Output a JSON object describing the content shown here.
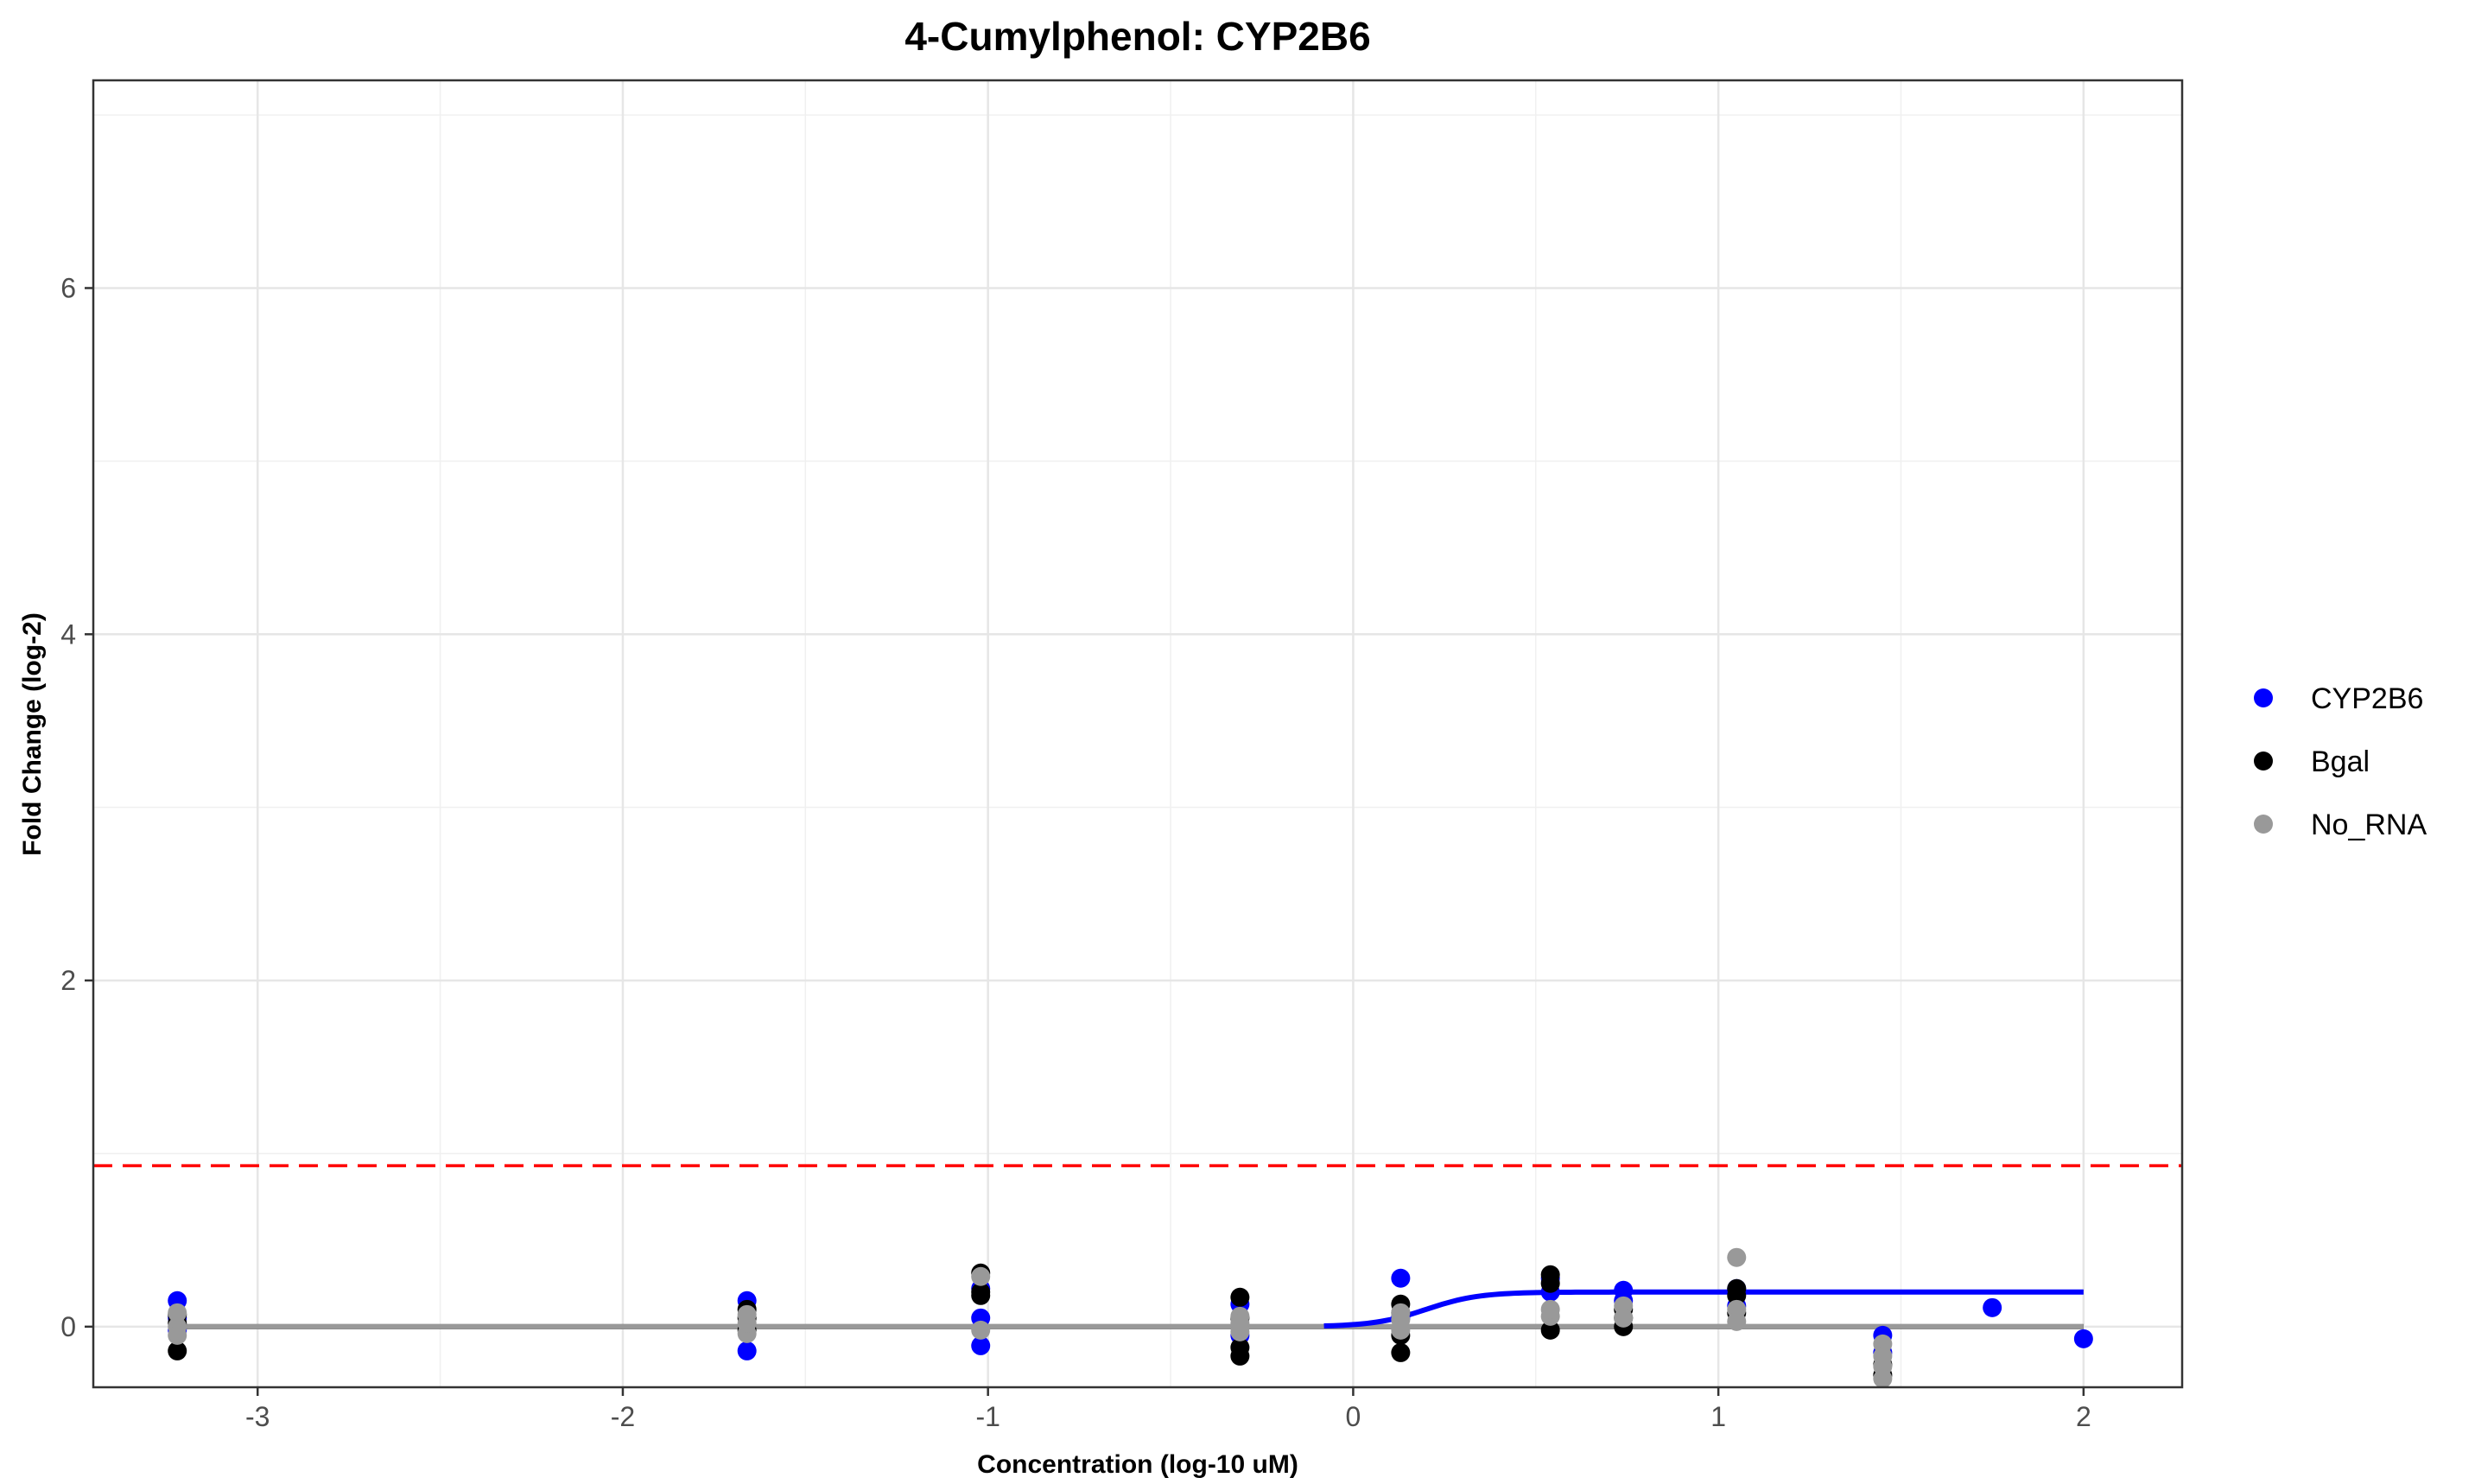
{
  "chart_data": {
    "type": "scatter",
    "title": "4-Cumylphenol: CYP2B6",
    "xlabel": "Concentration (log-10 uM)",
    "ylabel": "Fold Change (log-2)",
    "xlim": [
      -3.45,
      2.27
    ],
    "ylim": [
      -0.35,
      7.2
    ],
    "x_ticks": [
      -3,
      -2,
      -1,
      0,
      1,
      2
    ],
    "x_tick_labels": [
      "-3",
      "-2",
      "-1",
      "0",
      "1",
      "2"
    ],
    "x_minor_ticks": [
      -2.5,
      -1.5,
      -0.5,
      0.5,
      1.5
    ],
    "y_ticks": [
      0,
      2,
      4,
      6
    ],
    "y_tick_labels": [
      "0",
      "2",
      "4",
      "6"
    ],
    "y_minor_ticks": [
      1,
      3,
      5,
      7
    ],
    "grid": true,
    "legend_position": "right",
    "threshold": {
      "y": 0.93,
      "color": "#ff0000",
      "style": "dashed"
    },
    "series": [
      {
        "name": "CYP2B6",
        "color": "#0000ff",
        "points": [
          [
            -3.22,
            0.15
          ],
          [
            -3.22,
            0.05
          ],
          [
            -3.22,
            -0.02
          ],
          [
            -1.66,
            0.15
          ],
          [
            -1.66,
            -0.14
          ],
          [
            -1.02,
            0.05
          ],
          [
            -1.02,
            -0.11
          ],
          [
            -1.02,
            0.22
          ],
          [
            -0.31,
            0.13
          ],
          [
            -0.31,
            -0.05
          ],
          [
            0.13,
            0.28
          ],
          [
            0.13,
            0.05
          ],
          [
            0.54,
            0.2
          ],
          [
            0.54,
            0.28
          ],
          [
            0.74,
            0.21
          ],
          [
            0.74,
            0.15
          ],
          [
            1.05,
            0.22
          ],
          [
            1.05,
            0.12
          ],
          [
            1.45,
            -0.05
          ],
          [
            1.45,
            -0.15
          ],
          [
            1.75,
            0.11
          ],
          [
            2.0,
            -0.07
          ]
        ],
        "fit": {
          "bottom": 0,
          "top": 0.2,
          "ec50_log": 0.2,
          "hill": 6,
          "x_range": [
            -0.08,
            2.0
          ]
        }
      },
      {
        "name": "Bgal",
        "color": "#000000",
        "points": [
          [
            -3.22,
            -0.14
          ],
          [
            -3.22,
            0.02
          ],
          [
            -3.22,
            0.07
          ],
          [
            -1.66,
            0.1
          ],
          [
            -1.66,
            0.05
          ],
          [
            -1.66,
            -0.02
          ],
          [
            -1.02,
            0.31
          ],
          [
            -1.02,
            0.18
          ],
          [
            -1.02,
            0.2
          ],
          [
            -0.31,
            0.17
          ],
          [
            -0.31,
            -0.17
          ],
          [
            -0.31,
            -0.12
          ],
          [
            -0.31,
            0.05
          ],
          [
            0.13,
            0.13
          ],
          [
            0.13,
            -0.15
          ],
          [
            0.13,
            -0.05
          ],
          [
            0.13,
            0.08
          ],
          [
            0.54,
            0.3
          ],
          [
            0.54,
            0.25
          ],
          [
            0.54,
            -0.02
          ],
          [
            0.74,
            0.0
          ],
          [
            0.74,
            0.05
          ],
          [
            0.74,
            0.1
          ],
          [
            1.05,
            0.18
          ],
          [
            1.05,
            0.08
          ],
          [
            1.05,
            0.22
          ],
          [
            1.45,
            -0.28
          ],
          [
            1.45,
            -0.22
          ]
        ],
        "fit": {
          "level": 0,
          "x_range": [
            -3.22,
            2.0
          ]
        }
      },
      {
        "name": "No_RNA",
        "color": "#999999",
        "points": [
          [
            -3.22,
            0.08
          ],
          [
            -3.22,
            0.0
          ],
          [
            -3.22,
            -0.05
          ],
          [
            -1.66,
            0.07
          ],
          [
            -1.66,
            -0.04
          ],
          [
            -1.66,
            0.02
          ],
          [
            -1.02,
            0.29
          ],
          [
            -1.02,
            -0.02
          ],
          [
            -0.31,
            0.06
          ],
          [
            -0.31,
            -0.03
          ],
          [
            -0.31,
            0.02
          ],
          [
            0.13,
            0.04
          ],
          [
            0.13,
            0.08
          ],
          [
            0.13,
            -0.02
          ],
          [
            0.54,
            0.06
          ],
          [
            0.54,
            0.1
          ],
          [
            0.74,
            0.12
          ],
          [
            0.74,
            0.05
          ],
          [
            1.05,
            0.4
          ],
          [
            1.05,
            0.1
          ],
          [
            1.05,
            0.03
          ],
          [
            1.45,
            -0.1
          ],
          [
            1.45,
            -0.17
          ],
          [
            1.45,
            -0.23
          ],
          [
            1.45,
            -0.3
          ]
        ],
        "fit": {
          "level": 0,
          "x_range": [
            -3.22,
            2.0
          ]
        }
      }
    ]
  }
}
